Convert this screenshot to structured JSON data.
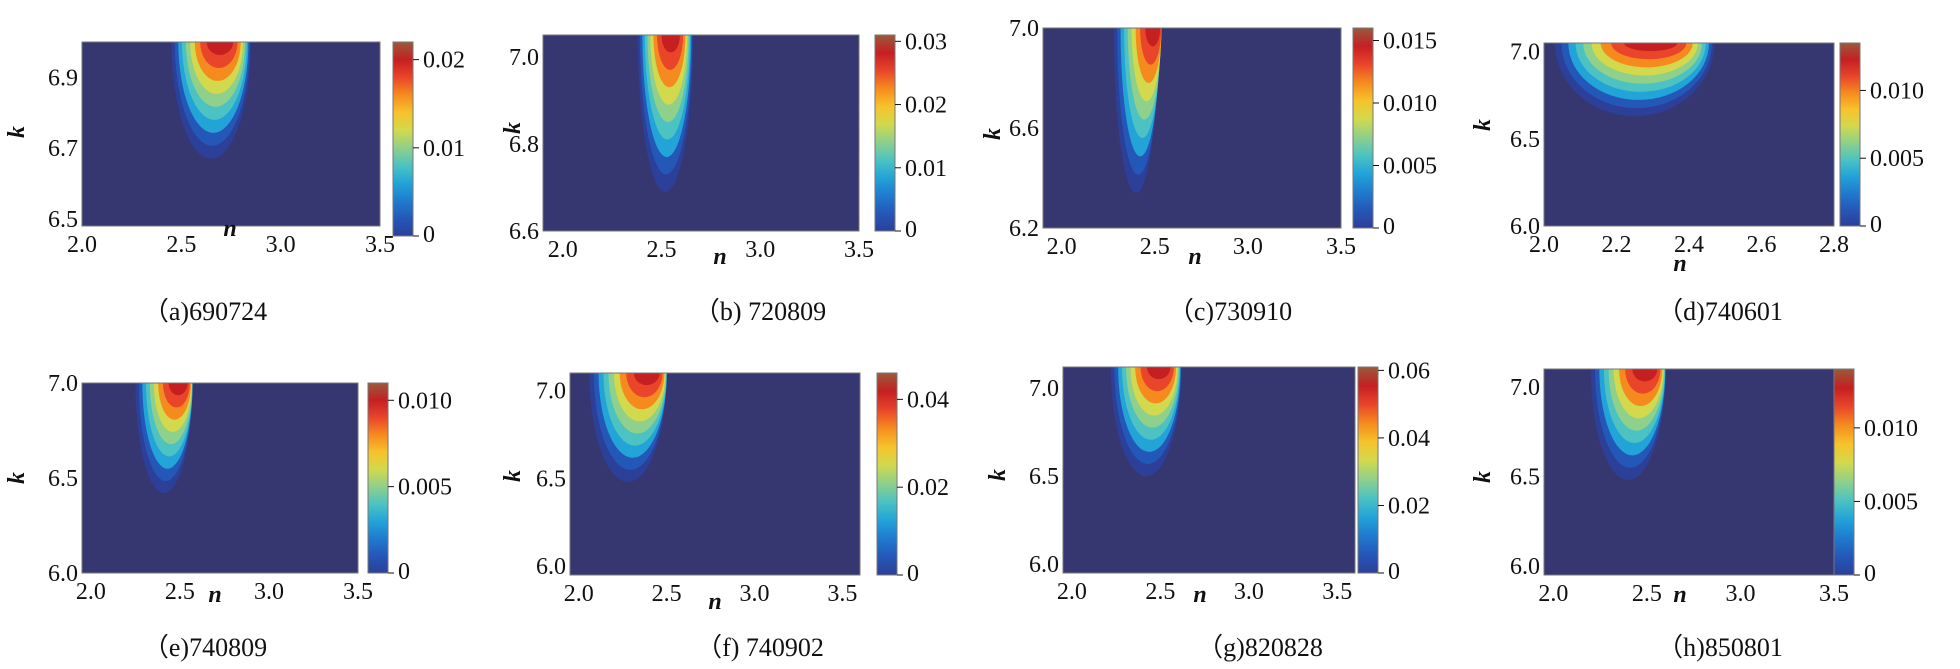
{
  "colors": {
    "background_field": "#363770",
    "colormap": [
      "#2c3f99",
      "#2458b8",
      "#1f7bcf",
      "#22a4d8",
      "#4cc3c2",
      "#8fd08a",
      "#d2d94d",
      "#f7c22b",
      "#f58b1f",
      "#e9452a",
      "#c51f22",
      "#9a5a3c"
    ]
  },
  "chart_data": [
    {
      "type": "heatmap",
      "panel": "a",
      "caption": "（a)690724",
      "xlabel": "n",
      "ylabel": "k",
      "xlim": [
        2.0,
        3.5
      ],
      "ylim": [
        6.48,
        7.0
      ],
      "xticks": [
        "2.0",
        "2.5",
        "3.0",
        "3.5"
      ],
      "yticks": [
        "6.5",
        "6.7",
        "6.9"
      ],
      "colorbar": {
        "min": 0,
        "max": 0.022,
        "ticks": [
          "0",
          "0.01",
          "0.02"
        ]
      },
      "peak": {
        "n": 2.7,
        "k": 7.0,
        "value": 0.022
      }
    },
    {
      "type": "heatmap",
      "panel": "b",
      "caption": "（b) 720809",
      "xlabel": "n",
      "ylabel": "k",
      "xlim": [
        1.9,
        3.5
      ],
      "ylim": [
        6.6,
        7.05
      ],
      "xticks": [
        "2.0",
        "2.5",
        "3.0",
        "3.5"
      ],
      "yticks": [
        "6.6",
        "6.8",
        "7.0"
      ],
      "colorbar": {
        "min": 0,
        "max": 0.031,
        "ticks": [
          "0",
          "0.01",
          "0.02",
          "0.03"
        ]
      },
      "peak": {
        "n": 2.55,
        "k": 7.05,
        "value": 0.031
      }
    },
    {
      "type": "heatmap",
      "panel": "c",
      "caption": "（c)730910",
      "xlabel": "n",
      "ylabel": "k",
      "xlim": [
        1.9,
        3.5
      ],
      "ylim": [
        6.2,
        7.0
      ],
      "xticks": [
        "2.0",
        "2.5",
        "3.0",
        "3.5"
      ],
      "yticks": [
        "6.2",
        "6.6",
        "7.0"
      ],
      "colorbar": {
        "min": 0,
        "max": 0.016,
        "ticks": [
          "0",
          "0.005",
          "0.010",
          "0.015"
        ]
      },
      "peak": {
        "n": 2.5,
        "k": 7.0,
        "value": 0.016
      }
    },
    {
      "type": "heatmap",
      "panel": "d",
      "caption": "（d)740601",
      "xlabel": "n",
      "ylabel": "k",
      "xlim": [
        2.0,
        2.8
      ],
      "ylim": [
        6.0,
        7.05
      ],
      "xticks": [
        "2.0",
        "2.2",
        "2.4",
        "2.6",
        "2.8"
      ],
      "yticks": [
        "6.0",
        "6.5",
        "7.0"
      ],
      "colorbar": {
        "min": 0,
        "max": 0.0135,
        "ticks": [
          "0",
          "0.005",
          "0.010"
        ]
      },
      "peak": {
        "n": 2.3,
        "k": 7.05,
        "value": 0.0135
      }
    },
    {
      "type": "heatmap",
      "panel": "e",
      "caption": "（e)740809",
      "xlabel": "n",
      "ylabel": "k",
      "xlim": [
        1.95,
        3.5
      ],
      "ylim": [
        6.0,
        7.0
      ],
      "xticks": [
        "2.0",
        "2.5",
        "3.0",
        "3.5"
      ],
      "yticks": [
        "6.0",
        "6.5",
        "7.0"
      ],
      "colorbar": {
        "min": 0,
        "max": 0.011,
        "ticks": [
          "0",
          "0.005",
          "0.010"
        ]
      },
      "peak": {
        "n": 2.5,
        "k": 7.0,
        "value": 0.011
      }
    },
    {
      "type": "heatmap",
      "panel": "f",
      "caption": "（f) 740902",
      "xlabel": "n",
      "ylabel": "k",
      "xlim": [
        1.95,
        3.6
      ],
      "ylim": [
        5.95,
        7.1
      ],
      "xticks": [
        "2.0",
        "2.5",
        "3.0",
        "3.5"
      ],
      "yticks": [
        "6.0",
        "6.5",
        "7.0"
      ],
      "colorbar": {
        "min": 0,
        "max": 0.046,
        "ticks": [
          "0",
          "0.02",
          "0.04"
        ]
      },
      "peak": {
        "n": 2.4,
        "k": 7.1,
        "value": 0.046
      }
    },
    {
      "type": "heatmap",
      "panel": "g",
      "caption": "（g)820828",
      "xlabel": "n",
      "ylabel": "k",
      "xlim": [
        1.95,
        3.6
      ],
      "ylim": [
        5.95,
        7.12
      ],
      "xticks": [
        "2.0",
        "2.5",
        "3.0",
        "3.5"
      ],
      "yticks": [
        "6.0",
        "6.5",
        "7.0"
      ],
      "colorbar": {
        "min": 0,
        "max": 0.061,
        "ticks": [
          "0",
          "0.02",
          "0.04",
          "0.06"
        ]
      },
      "peak": {
        "n": 2.5,
        "k": 7.12,
        "value": 0.061
      }
    },
    {
      "type": "heatmap",
      "panel": "h",
      "caption": "（h)850801",
      "xlabel": "n",
      "ylabel": "k",
      "xlim": [
        1.95,
        3.5
      ],
      "ylim": [
        5.95,
        7.1
      ],
      "xticks": [
        "2.0",
        "2.5",
        "3.0",
        "3.5"
      ],
      "yticks": [
        "6.0",
        "6.5",
        "7.0"
      ],
      "colorbar": {
        "min": 0,
        "max": 0.014,
        "ticks": [
          "0",
          "0.005",
          "0.010"
        ]
      },
      "peak": {
        "n": 2.5,
        "k": 7.1,
        "value": 0.014
      }
    }
  ]
}
